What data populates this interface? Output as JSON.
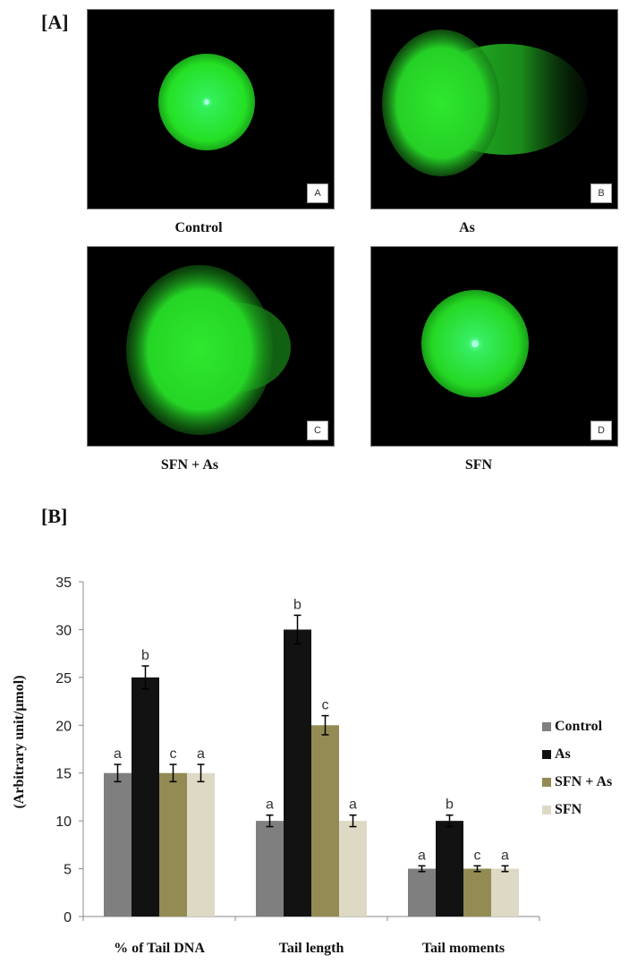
{
  "section_a_label": "[A]",
  "section_b_label": "[B]",
  "panels": [
    {
      "letter": "A",
      "caption": "Control"
    },
    {
      "letter": "B",
      "caption": "As"
    },
    {
      "letter": "C",
      "caption": "SFN + As"
    },
    {
      "letter": "D",
      "caption": "SFN"
    }
  ],
  "colors": {
    "comet_green": "#2ee82e",
    "comet_core": "#5cff9a"
  },
  "chart_data": {
    "type": "bar",
    "categories": [
      "% of Tail DNA",
      "Tail length",
      "Tail moments"
    ],
    "ylabel": "(Arbitrary unit/μmol)",
    "ylim": [
      0,
      35
    ],
    "yticks": [
      0,
      5,
      10,
      15,
      20,
      25,
      30,
      35
    ],
    "grid": false,
    "legend_position": "right",
    "series": [
      {
        "name": "Control",
        "color": "#7f7f7f",
        "values": [
          15,
          10,
          5
        ],
        "errors": [
          0.9,
          0.6,
          0.3
        ],
        "labels": [
          "a",
          "a",
          "a"
        ]
      },
      {
        "name": "As",
        "color": "#121212",
        "values": [
          25,
          30,
          10
        ],
        "errors": [
          1.2,
          1.5,
          0.6
        ],
        "labels": [
          "b",
          "b",
          "b"
        ]
      },
      {
        "name": "SFN + As",
        "color": "#948a54",
        "values": [
          15,
          20,
          5
        ],
        "errors": [
          0.9,
          1.0,
          0.3
        ],
        "labels": [
          "c",
          "c",
          "c"
        ]
      },
      {
        "name": "SFN",
        "color": "#ddd9c4",
        "values": [
          15,
          10,
          5
        ],
        "errors": [
          0.9,
          0.6,
          0.3
        ],
        "labels": [
          "a",
          "a",
          "a"
        ]
      }
    ]
  }
}
